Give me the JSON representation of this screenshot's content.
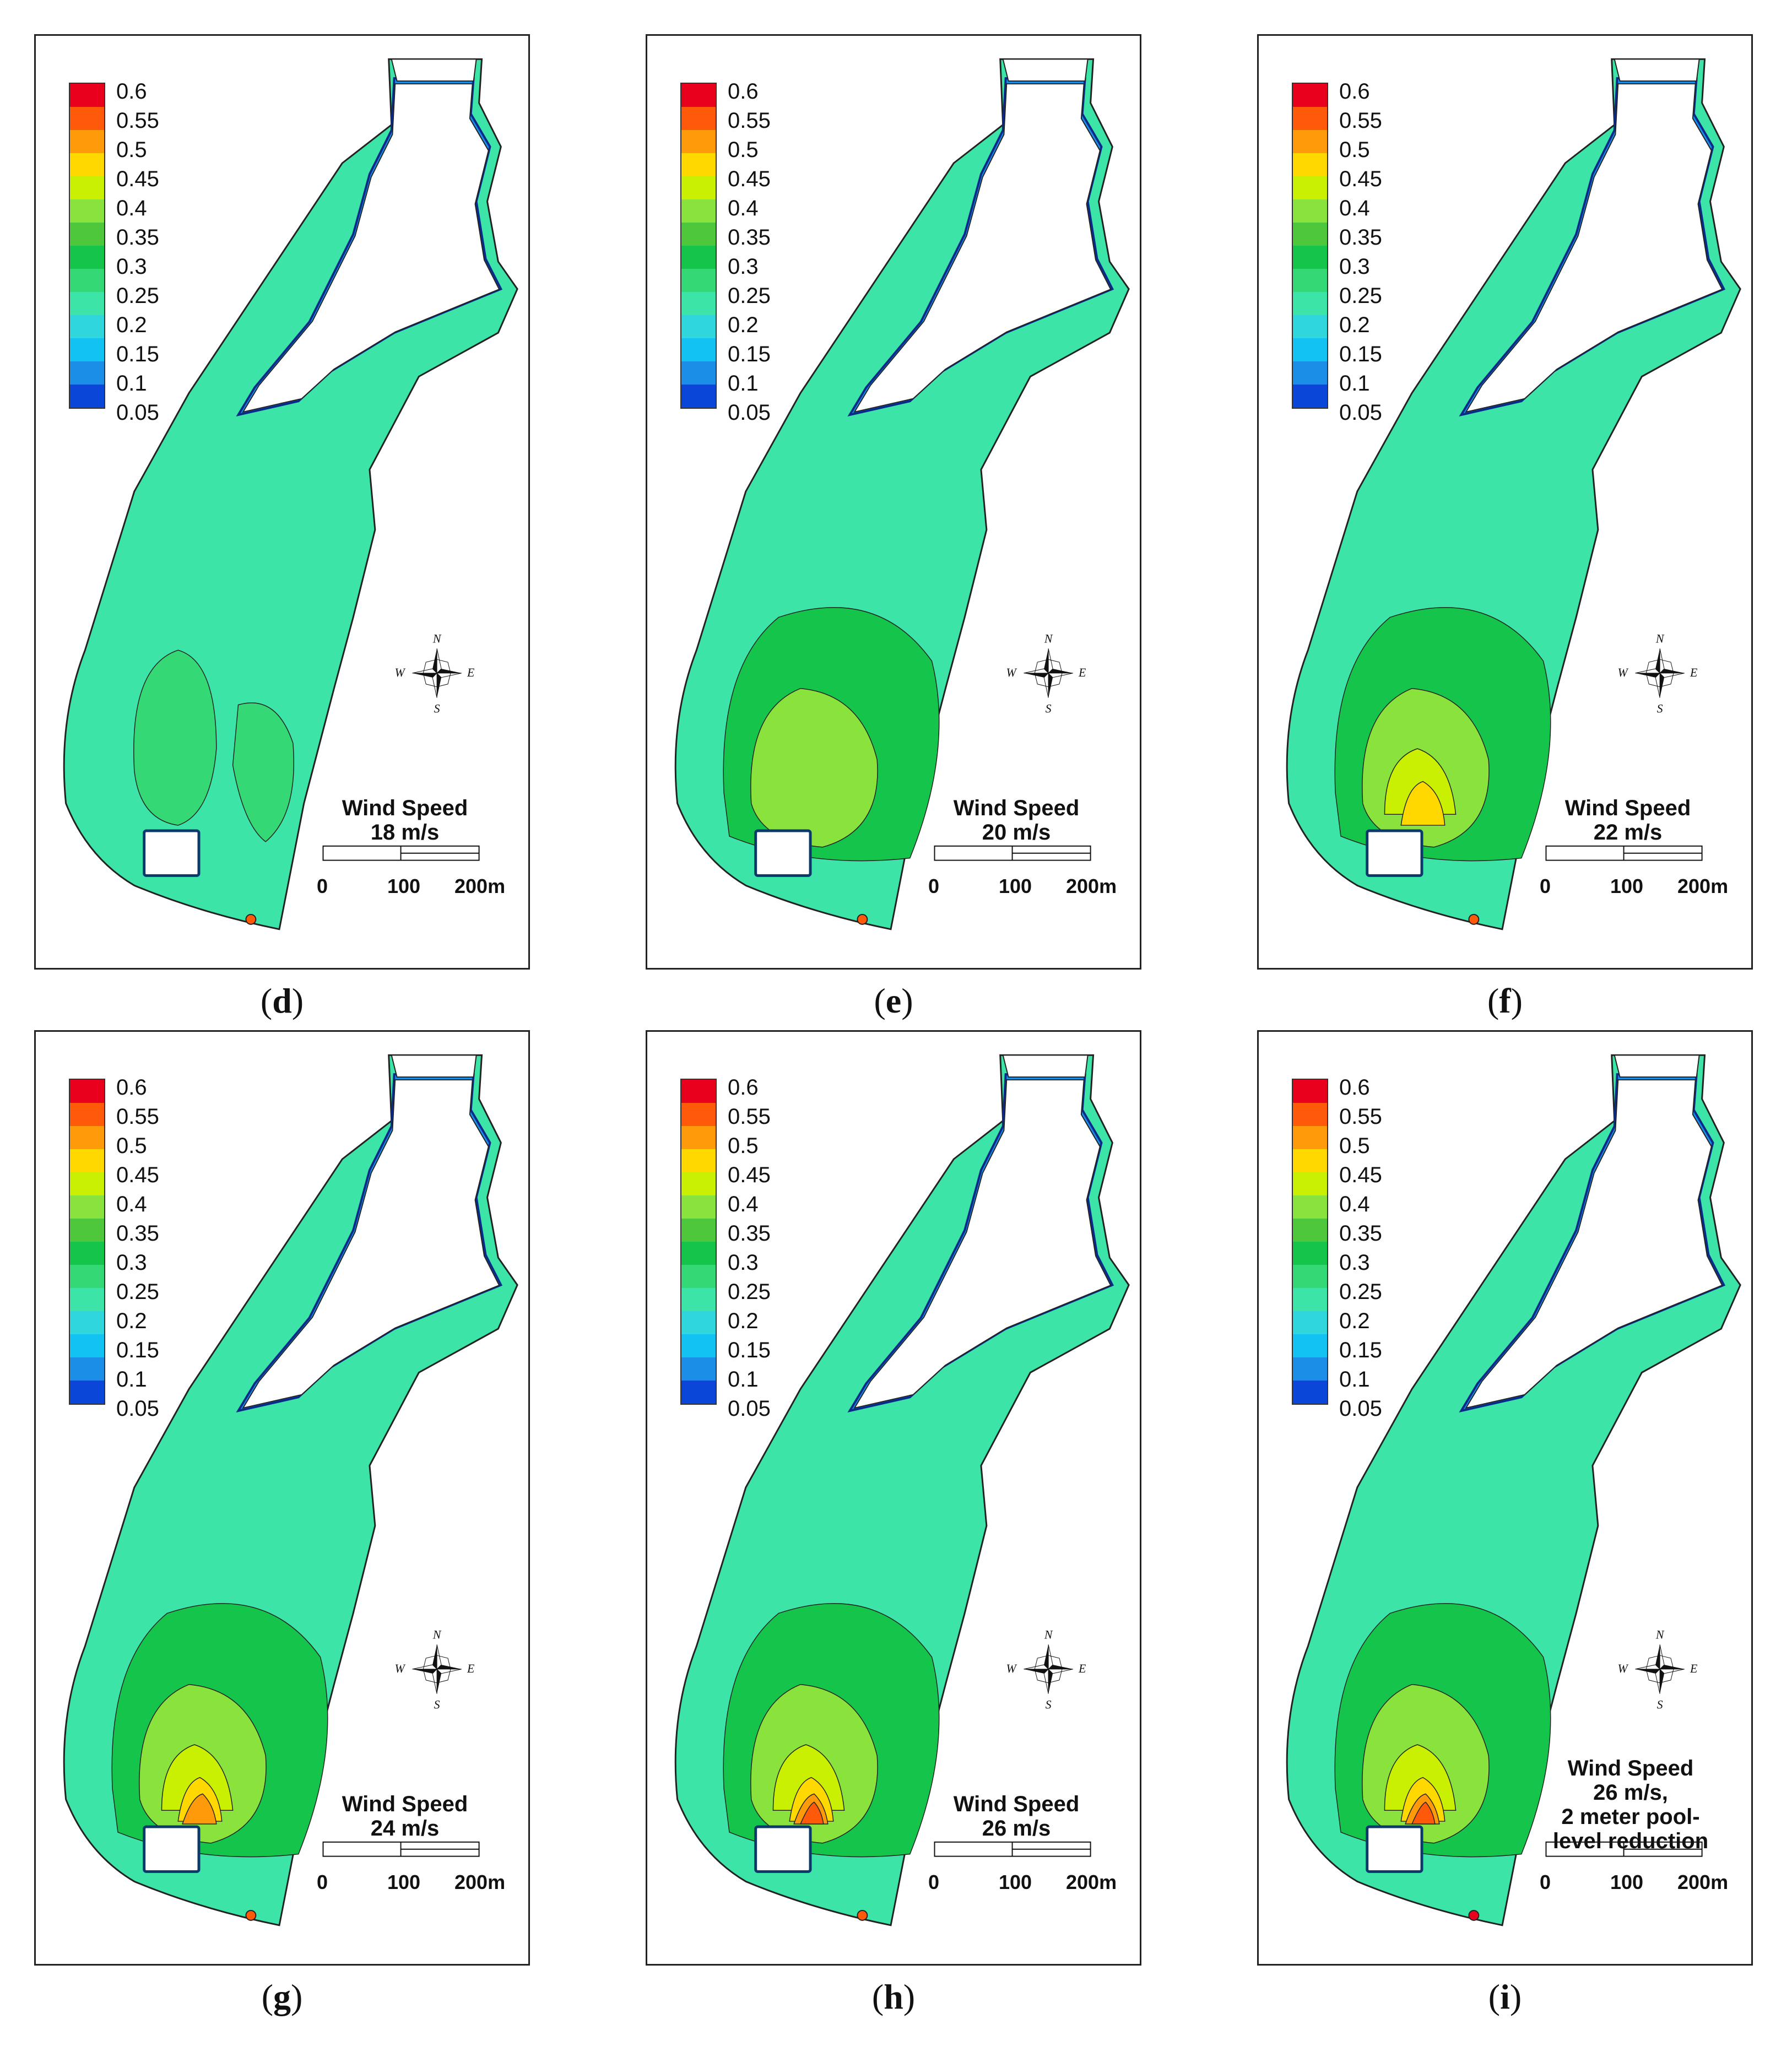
{
  "legend": {
    "colors": [
      "#e8001c",
      "#ff5a0a",
      "#ff9a0a",
      "#ffd800",
      "#c8f000",
      "#8ae33c",
      "#4ec83a",
      "#15c44b",
      "#34d874",
      "#3ce4a8",
      "#2fd6dc",
      "#12c2f2",
      "#1b8ee8",
      "#0a46d8"
    ],
    "labels": [
      "0.6",
      "0.55",
      "0.5",
      "0.45",
      "0.4",
      "0.35",
      "0.3",
      "0.25",
      "0.2",
      "0.15",
      "0.1",
      "0.05"
    ]
  },
  "compass": {
    "n": "N",
    "s": "S",
    "e": "E",
    "w": "W"
  },
  "scale": {
    "labels": [
      "0",
      "100",
      "200m"
    ]
  },
  "panels": [
    {
      "caption": "d",
      "wind": "Wind Speed\n18 m/s",
      "level": 1
    },
    {
      "caption": "e",
      "wind": "Wind Speed\n20 m/s",
      "level": 2
    },
    {
      "caption": "f",
      "wind": "Wind Speed\n22 m/s",
      "level": 3
    },
    {
      "caption": "g",
      "wind": "Wind Speed\n24 m/s",
      "level": 4
    },
    {
      "caption": "h",
      "wind": "Wind Speed\n26 m/s",
      "level": 5
    },
    {
      "caption": "i",
      "wind": "Wind Speed\n26 m/s,\n2 meter pool-\nlevel reduction",
      "level": 5
    }
  ]
}
